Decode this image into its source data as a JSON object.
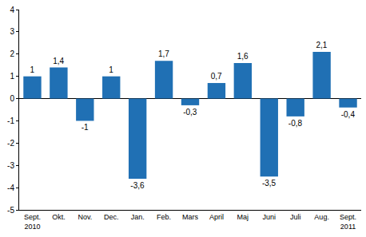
{
  "chart_data": {
    "type": "bar",
    "categories": [
      "Sept.\n2010",
      "Okt.",
      "Nov.",
      "Dec.",
      "Jan.",
      "Feb.",
      "Mars",
      "April",
      "Maj",
      "Juni",
      "Juli",
      "Aug.",
      "Sept.\n2011"
    ],
    "values": [
      1,
      1.4,
      -1,
      1,
      -3.6,
      1.7,
      -0.3,
      0.7,
      1.6,
      -3.5,
      -0.8,
      2.1,
      -0.4
    ],
    "value_labels": [
      "1",
      "1,4",
      "-1",
      "1",
      "-3,6",
      "1,7",
      "-0,3",
      "0,7",
      "1,6",
      "-3,5",
      "-0,8",
      "2,1",
      "-0,4"
    ],
    "color": "#2070b4",
    "ylim": [
      -5,
      4
    ],
    "yticks": [
      -5,
      -4,
      -3,
      -2,
      -1,
      0,
      1,
      2,
      3,
      4
    ],
    "grid": false,
    "data_labels": true
  }
}
